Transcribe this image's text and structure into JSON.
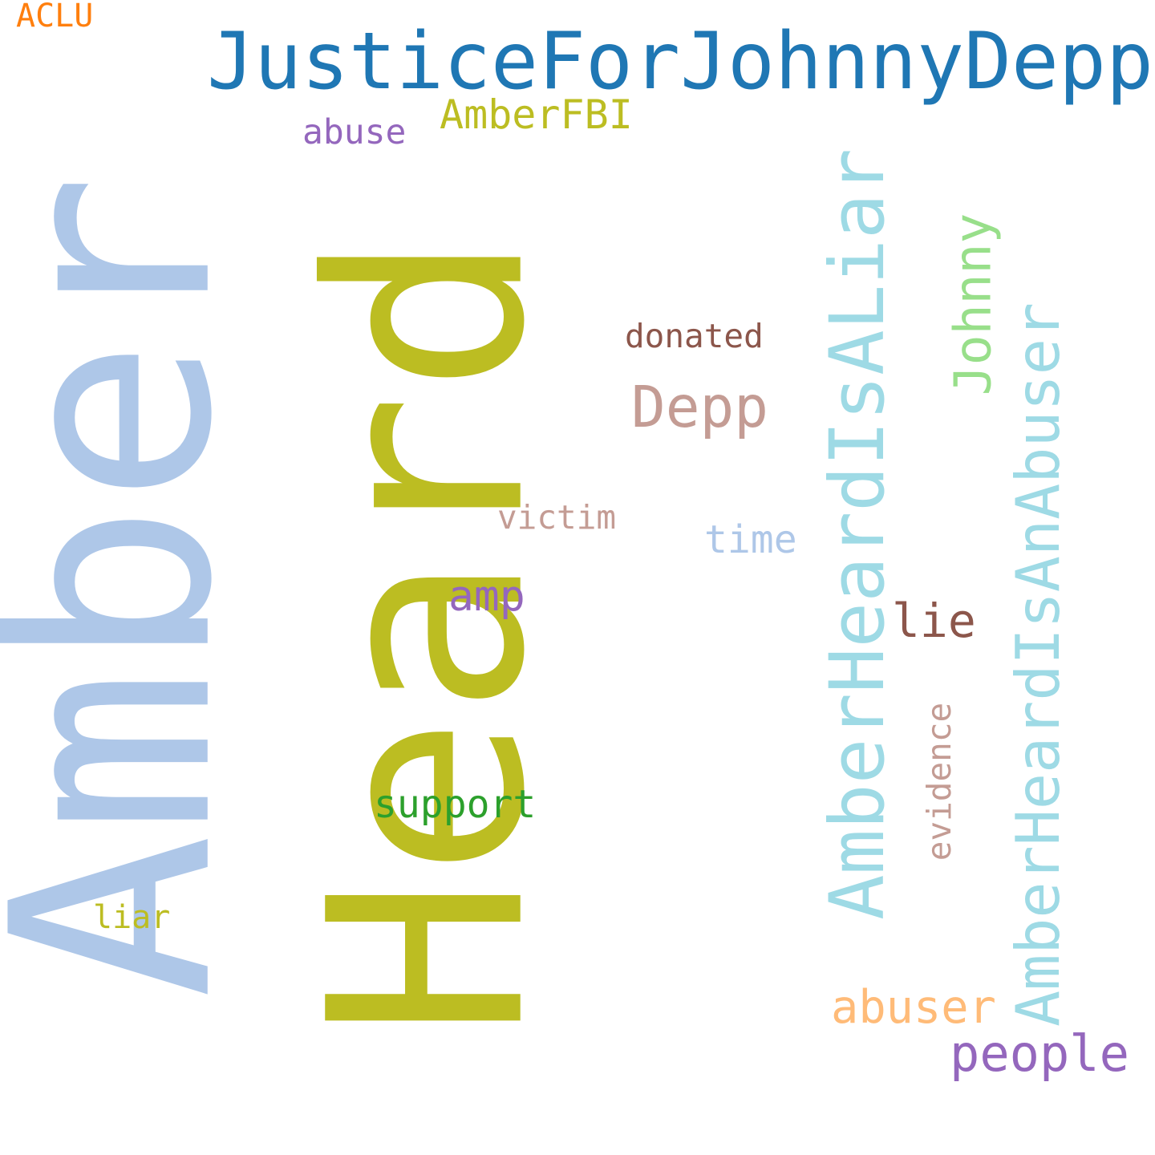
{
  "words": {
    "amber": {
      "text": "Amber",
      "color": "#aec7e8"
    },
    "heard": {
      "text": "Heard",
      "color": "#bcbd22"
    },
    "justice": {
      "text": "JusticeForJohnnyDepp",
      "color": "#1f77b4"
    },
    "liar_tag": {
      "text": "AmberHeardIsALiar",
      "color": "#9edae5"
    },
    "abuser_tag": {
      "text": "AmberHeardIsAnAbuser",
      "color": "#9edae5"
    },
    "johnny": {
      "text": "Johnny",
      "color": "#98df8a"
    },
    "depp": {
      "text": "Depp",
      "color": "#c49c94"
    },
    "amberfbi": {
      "text": "AmberFBI",
      "color": "#bcbd22"
    },
    "abuse": {
      "text": "abuse",
      "color": "#9467bd"
    },
    "donated": {
      "text": "donated",
      "color": "#8c564b"
    },
    "victim": {
      "text": "victim",
      "color": "#c49c94"
    },
    "time": {
      "text": "time",
      "color": "#aec7e8"
    },
    "amp": {
      "text": "amp",
      "color": "#9467bd"
    },
    "lie": {
      "text": "lie",
      "color": "#8c564b"
    },
    "evidence": {
      "text": "evidence",
      "color": "#c49c94"
    },
    "support": {
      "text": "support",
      "color": "#2ca02c"
    },
    "liar": {
      "text": "liar",
      "color": "#bcbd22"
    },
    "abuser": {
      "text": "abuser",
      "color": "#ffbb78"
    },
    "people": {
      "text": "people",
      "color": "#9467bd"
    },
    "aclu": {
      "text": "ACLU",
      "color": "#ff7f0e"
    }
  }
}
